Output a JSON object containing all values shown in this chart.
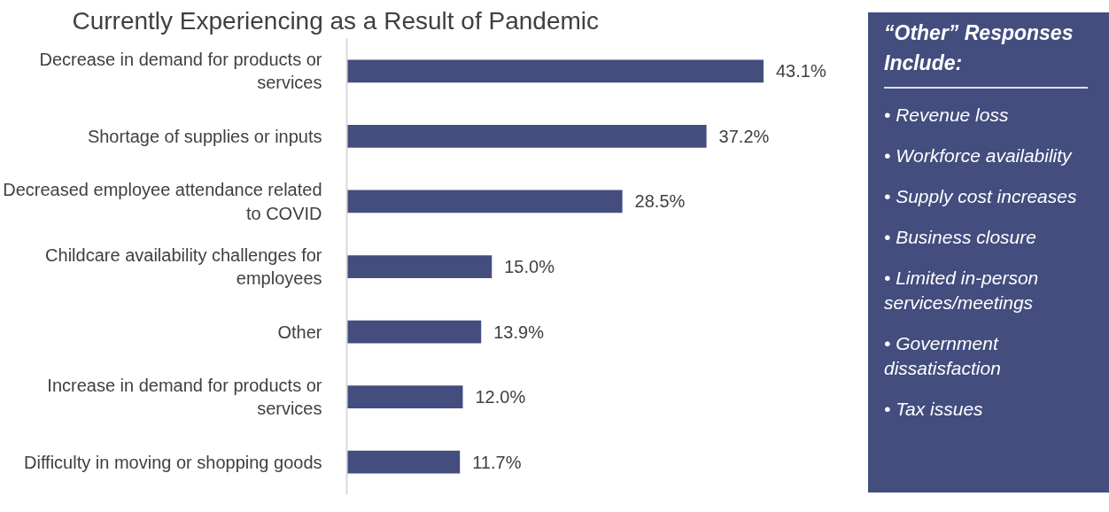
{
  "chart_data": [
    {
      "type": "bar",
      "orientation": "horizontal",
      "title": "Currently Experiencing as a Result of Pandemic",
      "color": "#434d7e",
      "categories": [
        "Decrease in demand for products or services",
        "Shortage of supplies or inputs",
        "Decreased employee attendance related to COVID",
        "Childcare availability challenges for employees",
        "Other",
        "Increase in demand for products or services",
        "Difficulty in moving or shopping goods"
      ],
      "values": [
        43.1,
        37.2,
        28.5,
        15.0,
        13.9,
        12.0,
        11.7
      ],
      "value_labels": [
        "43.1%",
        "37.2%",
        "28.5%",
        "15.0%",
        "13.9%",
        "12.0%",
        "11.7%"
      ]
    },
    {
      "type": "other",
      "title": "“Other” Responses Include:",
      "annotations": [
        "• Revenue loss",
        "• Workforce availability",
        "• Supply cost increases",
        "• Business closure",
        "• Limited in-person services/meetings",
        "• Government dissatisfaction",
        "• Tax issues"
      ]
    }
  ]
}
